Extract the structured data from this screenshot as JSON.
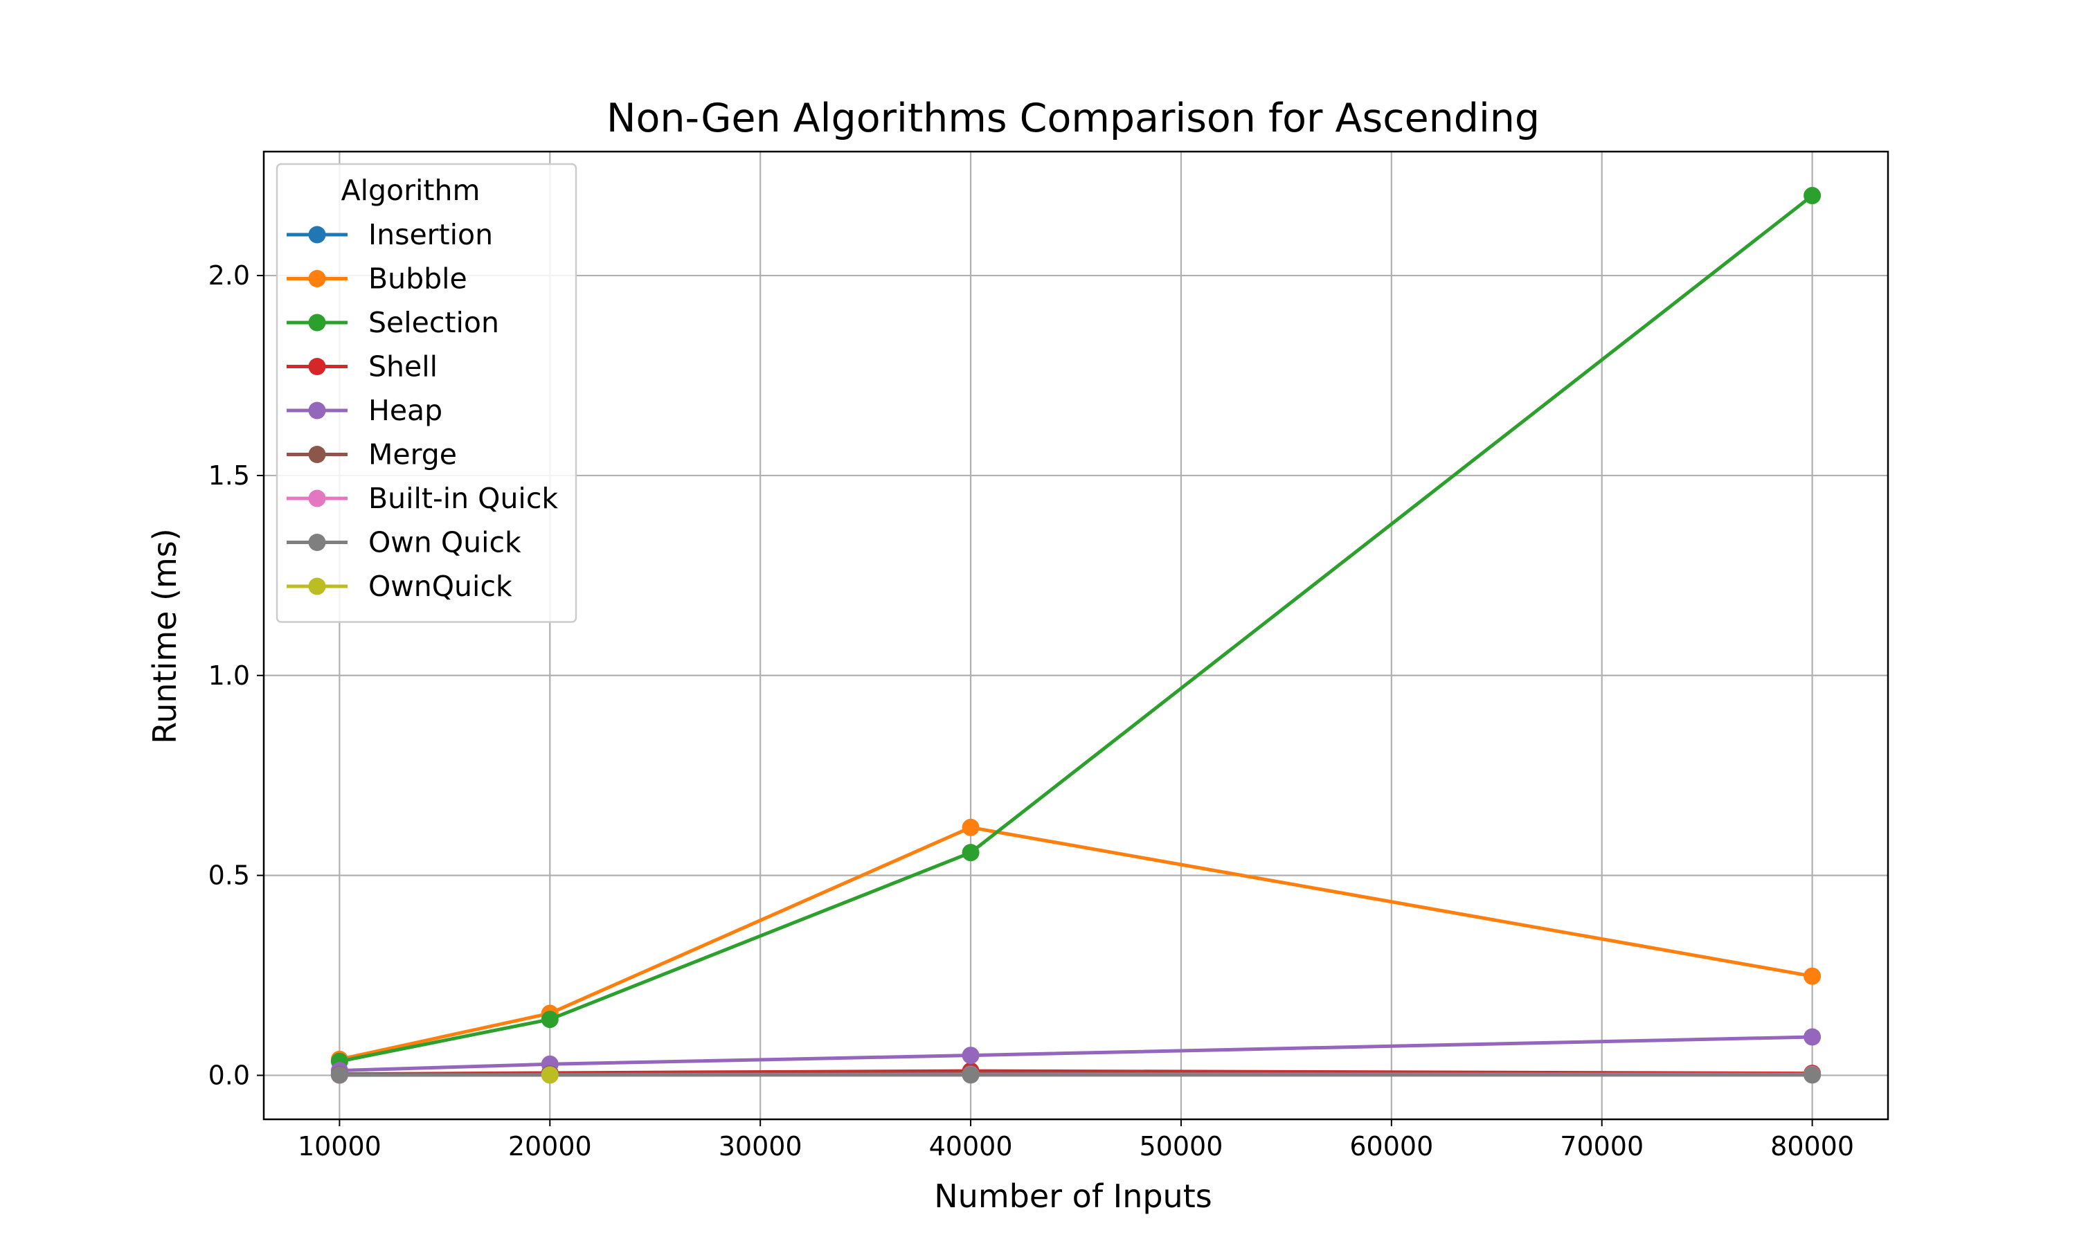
{
  "chart_data": {
    "type": "line",
    "title": "Non-Gen Algorithms Comparison for Ascending",
    "xlabel": "Number of Inputs",
    "ylabel": "Runtime (ms)",
    "xlim": [
      6400,
      83600
    ],
    "ylim": [
      -0.11,
      2.31
    ],
    "xticks": [
      10000,
      20000,
      30000,
      40000,
      50000,
      60000,
      70000,
      80000
    ],
    "xtick_labels": [
      "10000",
      "20000",
      "30000",
      "40000",
      "50000",
      "60000",
      "70000",
      "80000"
    ],
    "yticks": [
      0.0,
      0.5,
      1.0,
      1.5,
      2.0
    ],
    "ytick_labels": [
      "0.0",
      "0.5",
      "1.0",
      "1.5",
      "2.0"
    ],
    "grid": true,
    "legend": {
      "title": "Algorithm",
      "placement": "top-left"
    },
    "series": [
      {
        "name": "Insertion",
        "color": "#1f77b4",
        "x": [
          10000,
          20000,
          40000,
          80000
        ],
        "values": [
          0.002,
          0.002,
          0.002,
          0.002
        ]
      },
      {
        "name": "Bubble",
        "color": "#ff7f0e",
        "x": [
          10000,
          20000,
          40000,
          80000
        ],
        "values": [
          0.04,
          0.155,
          0.62,
          0.248
        ]
      },
      {
        "name": "Selection",
        "color": "#2ca02c",
        "x": [
          10000,
          20000,
          40000,
          80000
        ],
        "values": [
          0.035,
          0.14,
          0.557,
          2.2
        ]
      },
      {
        "name": "Shell",
        "color": "#d62728",
        "x": [
          10000,
          20000,
          40000,
          80000
        ],
        "values": [
          0.003,
          0.006,
          0.011,
          0.005
        ]
      },
      {
        "name": "Heap",
        "color": "#9467bd",
        "x": [
          10000,
          20000,
          40000,
          80000
        ],
        "values": [
          0.012,
          0.028,
          0.05,
          0.096
        ]
      },
      {
        "name": "Merge",
        "color": "#8c564b",
        "x": [
          10000,
          20000,
          40000,
          80000
        ],
        "values": [
          0.002,
          0.003,
          0.005,
          0.003
        ]
      },
      {
        "name": "Built-in Quick",
        "color": "#e377c2",
        "x": [
          10000,
          20000,
          40000,
          80000
        ],
        "values": [
          0.0005,
          0.001,
          0.002,
          0.002
        ]
      },
      {
        "name": "Own Quick",
        "color": "#7f7f7f",
        "x": [
          10000,
          40000,
          80000
        ],
        "values": [
          0.001,
          0.001,
          0.001
        ]
      },
      {
        "name": "OwnQuick",
        "color": "#bcbd22",
        "x": [
          20000
        ],
        "values": [
          0.001
        ]
      }
    ]
  }
}
